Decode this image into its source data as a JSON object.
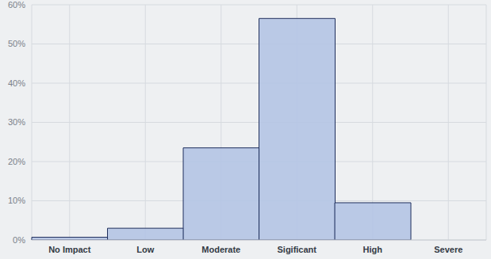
{
  "chart_data": {
    "type": "bar",
    "categories": [
      "No Impact",
      "Low",
      "Moderate",
      "Sigificant",
      "High",
      "Severe"
    ],
    "values": [
      0.7,
      3,
      23.5,
      56.5,
      9.5,
      0
    ],
    "color": "#b4c4e4",
    "ylim": [
      0,
      60
    ],
    "yticks": [
      {
        "value": 0,
        "label": "0%"
      },
      {
        "value": 10,
        "label": "10%"
      },
      {
        "value": 20,
        "label": "20%"
      },
      {
        "value": 30,
        "label": "30%"
      },
      {
        "value": 40,
        "label": "40%"
      },
      {
        "value": 50,
        "label": "50%"
      },
      {
        "value": 60,
        "label": "60%"
      }
    ],
    "grid": true
  }
}
